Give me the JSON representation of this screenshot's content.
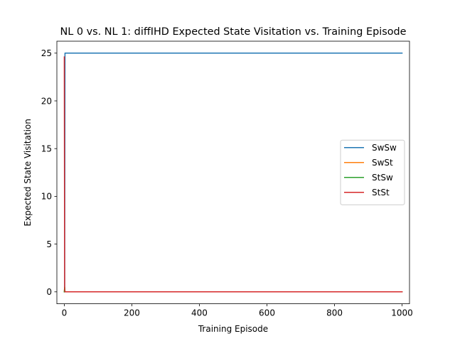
{
  "chart_data": {
    "type": "line",
    "title": "NL 0 vs. NL 1: diffIHD Expected State Visitation vs. Training Episode",
    "xlabel": "Training Episode",
    "ylabel": "Expected State Visitation",
    "xlim": [
      -22,
      1022
    ],
    "ylim": [
      -1.25,
      26.25
    ],
    "xticks": [
      0,
      200,
      400,
      600,
      800,
      1000
    ],
    "yticks": [
      0,
      5,
      10,
      15,
      20,
      25
    ],
    "grid": false,
    "legend_position": "center-right",
    "series": [
      {
        "name": "SwSw",
        "color": "#1f77b4",
        "x": [
          0,
          1,
          2,
          3,
          5,
          1000
        ],
        "y": [
          0.0,
          0.1,
          25.0,
          25.0,
          25.0,
          25.0
        ]
      },
      {
        "name": "SwSt",
        "color": "#ff7f0e",
        "x": [
          0,
          1,
          2,
          3,
          1000
        ],
        "y": [
          0.0,
          0.4,
          0.05,
          0.0,
          0.0
        ]
      },
      {
        "name": "StSw",
        "color": "#2ca02c",
        "x": [
          0,
          1,
          2,
          3,
          1000
        ],
        "y": [
          0.0,
          0.5,
          0.05,
          0.0,
          0.0
        ]
      },
      {
        "name": "StSt",
        "color": "#d62728",
        "x": [
          0,
          1,
          2,
          3,
          1000
        ],
        "y": [
          24.6,
          0.2,
          0.0,
          0.0,
          0.0
        ]
      }
    ]
  }
}
